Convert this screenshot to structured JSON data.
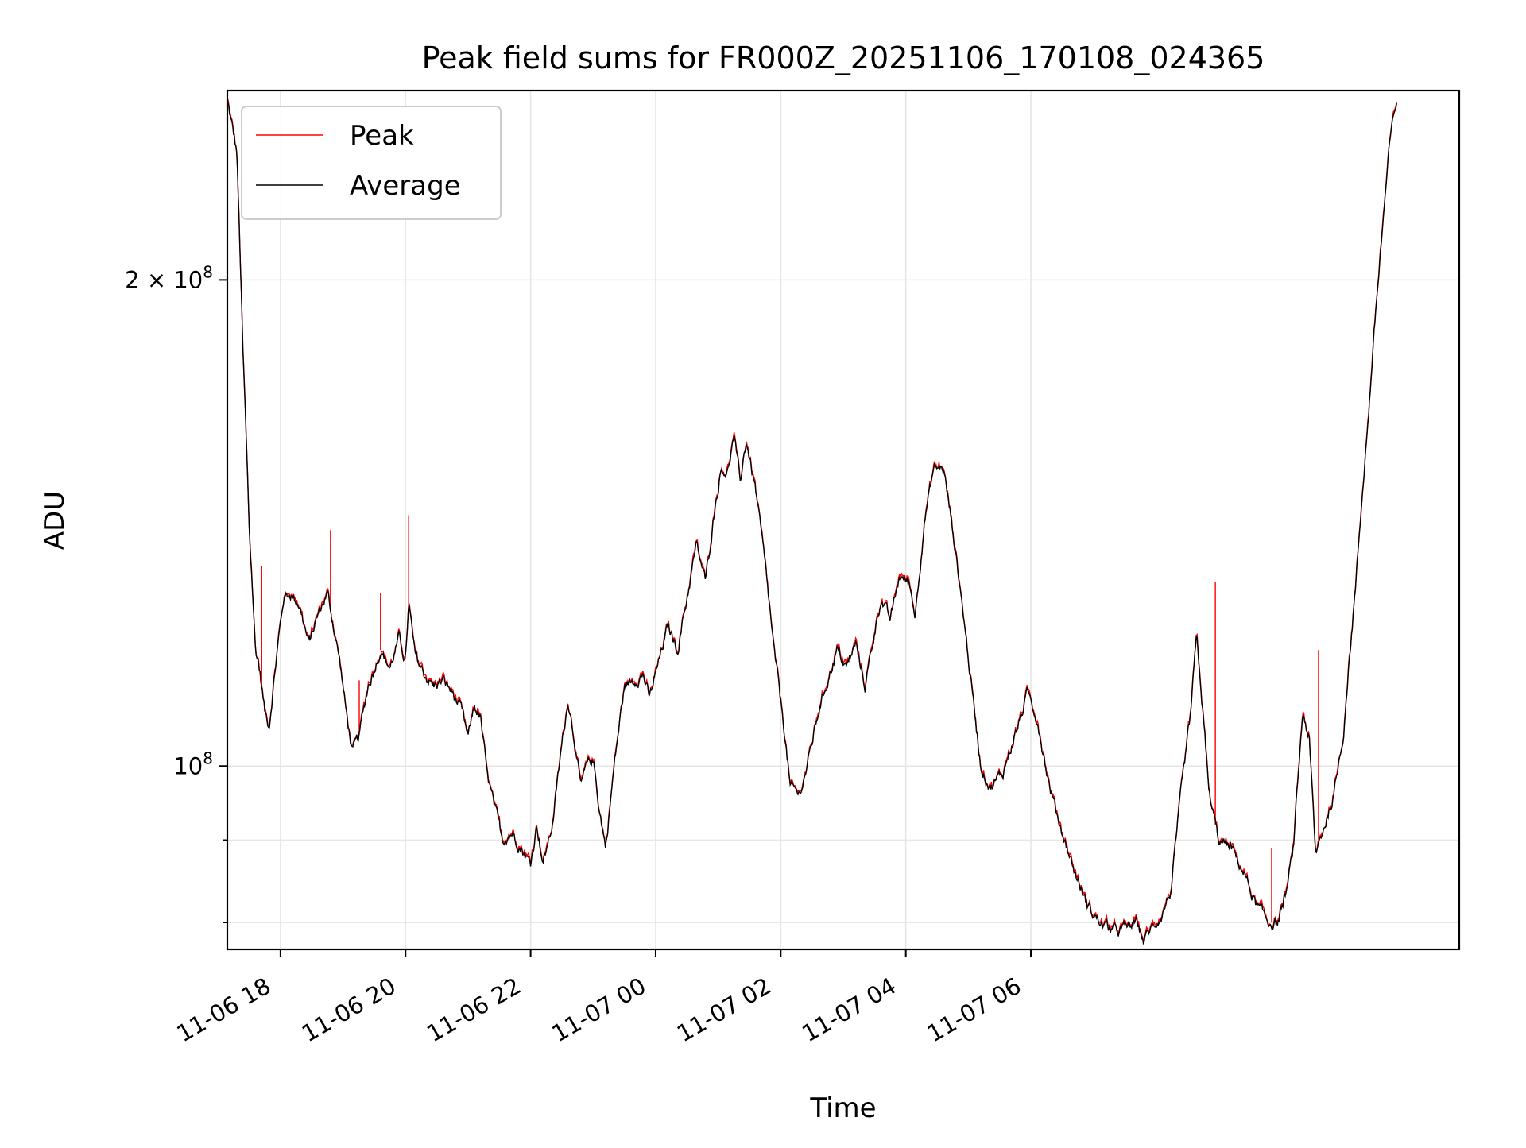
{
  "chart_data": {
    "type": "line",
    "title": "Peak field sums for FR000Z_20251106_170108_024365",
    "xlabel": "Time",
    "ylabel": "ADU",
    "yscale": "log",
    "xlim": [
      -0.85,
      18.85
    ],
    "ylim": [
      77000000,
      262000000
    ],
    "grid": true,
    "legend_position": "upper-left",
    "x_unit": "hours since 11-06 18:00",
    "x_ticks": [
      {
        "value": 0,
        "label": "11-06 18"
      },
      {
        "value": 2,
        "label": "11-06 20"
      },
      {
        "value": 4,
        "label": "11-06 22"
      },
      {
        "value": 6,
        "label": "11-07 00"
      },
      {
        "value": 8,
        "label": "11-07 02"
      },
      {
        "value": 10,
        "label": "11-07 04"
      },
      {
        "value": 12,
        "label": "11-07 06"
      }
    ],
    "y_ticks": [
      {
        "value": 100000000,
        "base": "10",
        "exp": "8"
      },
      {
        "value": 200000000,
        "base": "2 × 10",
        "exp": "8"
      }
    ],
    "y_minor_ticks": [
      80000000,
      90000000
    ],
    "series": [
      {
        "name": "Peak",
        "color": "#ff0000",
        "points": [
          [
            -0.85,
            261000000
          ],
          [
            -0.75,
            255000000
          ],
          [
            -0.65,
            225000000
          ],
          [
            -0.6,
            185000000
          ],
          [
            -0.55,
            150000000
          ],
          [
            -0.5,
            130000000
          ],
          [
            -0.45,
            120000000
          ],
          [
            -0.4,
            117000000
          ],
          [
            -0.35,
            115000000
          ],
          [
            -0.3,
            110000000
          ],
          [
            -0.25,
            108000000
          ],
          [
            -0.2,
            106000000
          ],
          [
            -0.1,
            115000000
          ],
          [
            0,
            125000000
          ],
          [
            -0.3,
            133000000
          ],
          [
            -0.28,
            110000000
          ],
          [
            0,
            125000000
          ],
          [
            0.1,
            133000000
          ],
          [
            0.2,
            131000000
          ],
          [
            0.3,
            128000000
          ],
          [
            0.38,
            127000000
          ],
          [
            0.45,
            121000000
          ],
          [
            0.5,
            120000000
          ],
          [
            0.6,
            125000000
          ],
          [
            0.7,
            131000000
          ],
          [
            0.78,
            131000000
          ],
          [
            0.8,
            140000000
          ],
          [
            0.82,
            122000000
          ],
          [
            0.86,
            125000000
          ],
          [
            0.9,
            119000000
          ],
          [
            1.0,
            110000000
          ],
          [
            1.1,
            104000000
          ],
          [
            1.18,
            102000000
          ],
          [
            1.26,
            113000000
          ],
          [
            1.27,
            104000000
          ],
          [
            1.35,
            112000000
          ],
          [
            1.45,
            115000000
          ],
          [
            1.5,
            118000000
          ],
          [
            1.55,
            128000000
          ],
          [
            1.6,
            120000000
          ],
          [
            1.7,
            114000000
          ],
          [
            1.8,
            118000000
          ],
          [
            1.9,
            120000000
          ],
          [
            2.0,
            118000000
          ],
          [
            2.05,
            143000000
          ],
          [
            2.1,
            125000000
          ],
          [
            2.2,
            118000000
          ],
          [
            2.3,
            115000000
          ],
          [
            2.4,
            112000000
          ],
          [
            2.5,
            115000000
          ],
          [
            2.6,
            112000000
          ],
          [
            2.7,
            110000000
          ],
          [
            2.8,
            112000000
          ],
          [
            2.9,
            108000000
          ],
          [
            3.0,
            104000000
          ],
          [
            3.1,
            110000000
          ],
          [
            3.2,
            108000000
          ],
          [
            3.3,
            100000000
          ],
          [
            3.4,
            96000000
          ],
          [
            3.5,
            93000000
          ],
          [
            3.6,
            90000000
          ],
          [
            3.7,
            94000000
          ],
          [
            3.8,
            91000000
          ],
          [
            3.9,
            89000000
          ],
          [
            4.0,
            88000000
          ],
          [
            4.1,
            94000000
          ],
          [
            4.15,
            91000000
          ],
          [
            4.2,
            88000000
          ],
          [
            4.3,
            90000000
          ],
          [
            4.4,
            96000000
          ],
          [
            4.5,
            103000000
          ],
          [
            4.6,
            111000000
          ],
          [
            4.7,
            106000000
          ],
          [
            4.8,
            96000000
          ],
          [
            4.9,
            98000000
          ],
          [
            5.0,
            101000000
          ],
          [
            5.1,
            96000000
          ],
          [
            5.2,
            89000000
          ],
          [
            5.3,
            96000000
          ],
          [
            5.4,
            106000000
          ],
          [
            5.5,
            113000000
          ],
          [
            5.6,
            113000000
          ],
          [
            5.7,
            114000000
          ],
          [
            5.8,
            116000000
          ],
          [
            5.9,
            110000000
          ],
          [
            6.0,
            114000000
          ],
          [
            6.1,
            119000000
          ],
          [
            6.2,
            124000000
          ],
          [
            6.3,
            117000000
          ],
          [
            6.4,
            120000000
          ],
          [
            6.5,
            128000000
          ],
          [
            6.6,
            138000000
          ],
          [
            6.7,
            134000000
          ],
          [
            6.8,
            131000000
          ],
          [
            6.9,
            142000000
          ],
          [
            7.0,
            152000000
          ],
          [
            7.05,
            154000000
          ],
          [
            7.1,
            157000000
          ],
          [
            7.15,
            152000000
          ],
          [
            7.2,
            160000000
          ],
          [
            7.25,
            150000000
          ],
          [
            7.3,
            148000000
          ],
          [
            7.35,
            160000000
          ],
          [
            7.4,
            159000000
          ],
          [
            7.5,
            152000000
          ],
          [
            7.6,
            145000000
          ],
          [
            7.7,
            140000000
          ],
          [
            7.8,
            125000000
          ],
          [
            7.9,
            117000000
          ],
          [
            8.0,
            110000000
          ],
          [
            8.1,
            104000000
          ],
          [
            8.15,
            99000000
          ],
          [
            8.2,
            95000000
          ],
          [
            8.3,
            95000000
          ],
          [
            8.4,
            96000000
          ],
          [
            8.5,
            99000000
          ],
          [
            8.6,
            104000000
          ],
          [
            8.7,
            110000000
          ],
          [
            8.75,
            112000000
          ]
        ]
      },
      {
        "name": "Average",
        "color": "#000000",
        "points": []
      }
    ]
  }
}
